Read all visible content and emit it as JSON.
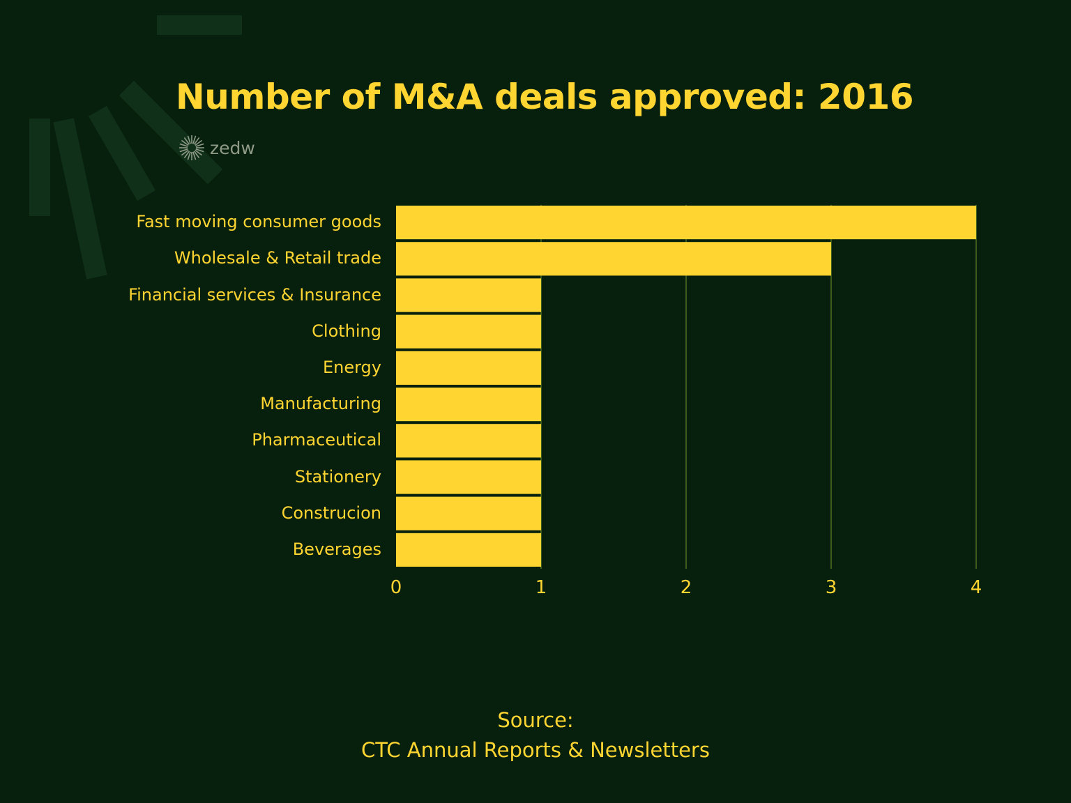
{
  "title": "Number of M&A deals approved: 2016",
  "logo": {
    "text": "zedw",
    "icon": "sunburst-icon"
  },
  "colors": {
    "background": "#07200d",
    "bar": "#ffd531",
    "text": "#ffd531",
    "grid": "#3f5a1e"
  },
  "chart_data": {
    "type": "bar",
    "orientation": "horizontal",
    "title": "Number of M&A deals approved: 2016",
    "categories": [
      "Fast moving consumer goods",
      "Wholesale & Retail trade",
      "Financial services & Insurance",
      "Clothing",
      "Energy",
      "Manufacturing",
      "Pharmaceutical",
      "Stationery",
      "Construcion",
      "Beverages"
    ],
    "values": [
      4,
      3,
      1,
      1,
      1,
      1,
      1,
      1,
      1,
      1
    ],
    "xlim": [
      0,
      4
    ],
    "xticks": [
      "0",
      "1",
      "2",
      "3",
      "4"
    ],
    "grid": "vertical",
    "xlabel": "",
    "ylabel": ""
  },
  "source": {
    "line1": "Source:",
    "line2": "CTC Annual Reports & Newsletters"
  }
}
